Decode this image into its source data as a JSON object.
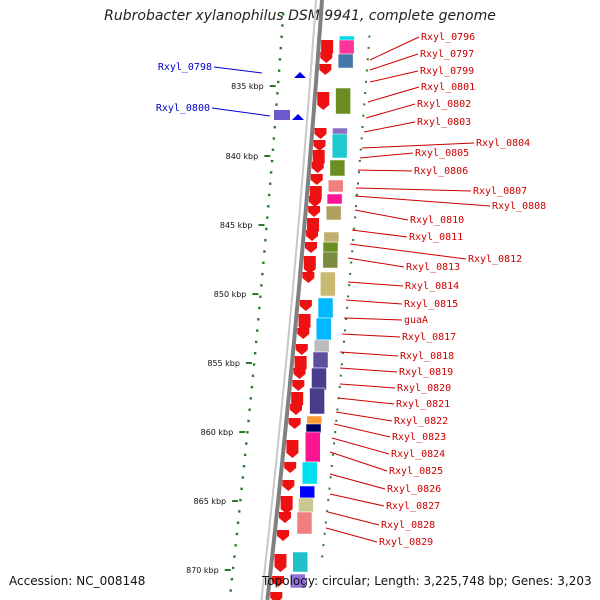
{
  "title": "Rubrobacter xylanophilus DSM 9941, complete genome",
  "footer": {
    "accession": "Accession: NC_008148",
    "topology": "Topology: circular; Length: 3,225,748 bp; Genes: 3,203"
  },
  "colors": {
    "strand_arrow_forward": "#ee1111",
    "strand_arrow_reverse": "#0000ee",
    "label_right": "#cc0000",
    "label_left": "#0000cc",
    "backbone": "#808080",
    "tick": "#2a7a2a"
  },
  "ticks": [
    {
      "kbp": 835,
      "label": "835 kbp"
    },
    {
      "kbp": 840,
      "label": "840 kbp"
    },
    {
      "kbp": 845,
      "label": "845 kbp"
    },
    {
      "kbp": 850,
      "label": "850 kbp"
    },
    {
      "kbp": 855,
      "label": "855 kbp"
    },
    {
      "kbp": 860,
      "label": "860 kbp"
    },
    {
      "kbp": 865,
      "label": "865 kbp"
    },
    {
      "kbp": 870,
      "label": "870 kbp"
    }
  ],
  "left_genes": [
    {
      "name": "Rxyl_0798",
      "strand": "-"
    },
    {
      "name": "Rxyl_0800",
      "strand": "-"
    }
  ],
  "right_genes": [
    {
      "name": "Rxyl_0796"
    },
    {
      "name": "Rxyl_0797"
    },
    {
      "name": "Rxyl_0799"
    },
    {
      "name": "Rxyl_0801"
    },
    {
      "name": "Rxyl_0802"
    },
    {
      "name": "Rxyl_0803"
    },
    {
      "name": "Rxyl_0804"
    },
    {
      "name": "Rxyl_0805"
    },
    {
      "name": "Rxyl_0806"
    },
    {
      "name": "Rxyl_0807"
    },
    {
      "name": "Rxyl_0808"
    },
    {
      "name": "Rxyl_0810"
    },
    {
      "name": "Rxyl_0811"
    },
    {
      "name": "Rxyl_0812"
    },
    {
      "name": "Rxyl_0813"
    },
    {
      "name": "Rxyl_0814"
    },
    {
      "name": "Rxyl_0815"
    },
    {
      "name": "guaA"
    },
    {
      "name": "Rxyl_0817"
    },
    {
      "name": "Rxyl_0818"
    },
    {
      "name": "Rxyl_0819"
    },
    {
      "name": "Rxyl_0820"
    },
    {
      "name": "Rxyl_0821"
    },
    {
      "name": "Rxyl_0822"
    },
    {
      "name": "Rxyl_0823"
    },
    {
      "name": "Rxyl_0824"
    },
    {
      "name": "Rxyl_0825"
    },
    {
      "name": "Rxyl_0826"
    },
    {
      "name": "Rxyl_0827"
    },
    {
      "name": "Rxyl_0828"
    },
    {
      "name": "Rxyl_0829"
    }
  ],
  "cog_blocks": [
    {
      "color": "#00d8e8"
    },
    {
      "color": "#ff3399"
    },
    {
      "color": "#4477aa"
    },
    {
      "color": "#6b8e23"
    },
    {
      "color": "#20c8d0"
    },
    {
      "color": "#8a6fc8"
    },
    {
      "color": "#6b8e23"
    },
    {
      "color": "#f08080"
    },
    {
      "color": "#ff1493"
    },
    {
      "color": "#b0a060"
    },
    {
      "color": "#7b8b3f"
    },
    {
      "color": "#c8b870"
    },
    {
      "color": "#6b8e23"
    },
    {
      "color": "#bfb070"
    },
    {
      "color": "#00b8ff"
    },
    {
      "color": "#00b8ff"
    },
    {
      "color": "#bbbbbb"
    },
    {
      "color": "#5d4fa0"
    },
    {
      "color": "#4a3d8f"
    },
    {
      "color": "#483d8b"
    },
    {
      "color": "#ff9933"
    },
    {
      "color": "#000066"
    },
    {
      "color": "#ff1493"
    },
    {
      "color": "#00e0f0"
    },
    {
      "color": "#0000ff"
    },
    {
      "color": "#c8c890"
    },
    {
      "color": "#f08080"
    },
    {
      "color": "#20c0c8"
    },
    {
      "color": "#9370db"
    }
  ]
}
